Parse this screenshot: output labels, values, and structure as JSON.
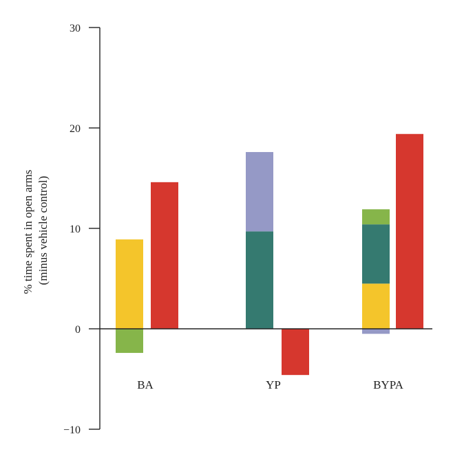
{
  "chart_data": {
    "type": "bar",
    "stacked": true,
    "ylabel_lines": [
      "% time spent in open arms",
      "(minus vehicle control)"
    ],
    "ylim": [
      -10,
      30
    ],
    "yticks": [
      -10,
      0,
      10,
      20,
      30
    ],
    "ytick_labels": [
      "−10",
      "0",
      "10",
      "20",
      "30"
    ],
    "grid": false,
    "legend": "none",
    "categories": [
      "BA",
      "YP",
      "BYPA"
    ],
    "groups": [
      {
        "category": "BA",
        "bars": [
          {
            "role": "components",
            "segments": [
              {
                "component": "yellow",
                "value": 8.9
              },
              {
                "component": "green",
                "value": -2.4
              }
            ]
          },
          {
            "role": "combined",
            "segments": [
              {
                "component": "red",
                "value": 14.6
              }
            ]
          }
        ]
      },
      {
        "category": "YP",
        "bars": [
          {
            "role": "components",
            "segments": [
              {
                "component": "teal",
                "value": 9.7
              },
              {
                "component": "lavender",
                "value": 7.9
              }
            ]
          },
          {
            "role": "combined",
            "segments": [
              {
                "component": "red",
                "value": -4.6
              }
            ]
          }
        ]
      },
      {
        "category": "BYPA",
        "bars": [
          {
            "role": "components",
            "segments": [
              {
                "component": "yellow",
                "value": 4.5
              },
              {
                "component": "teal",
                "value": 5.9
              },
              {
                "component": "green",
                "value": 1.5
              },
              {
                "component": "lavender",
                "value": -0.5
              }
            ]
          },
          {
            "role": "combined",
            "segments": [
              {
                "component": "red",
                "value": 19.4
              }
            ]
          }
        ]
      }
    ],
    "colors": {
      "yellow": "#F4C52B",
      "green": "#86B54A",
      "teal": "#357A70",
      "lavender": "#9599C6",
      "red": "#D6372E",
      "axis": "#222222"
    }
  }
}
